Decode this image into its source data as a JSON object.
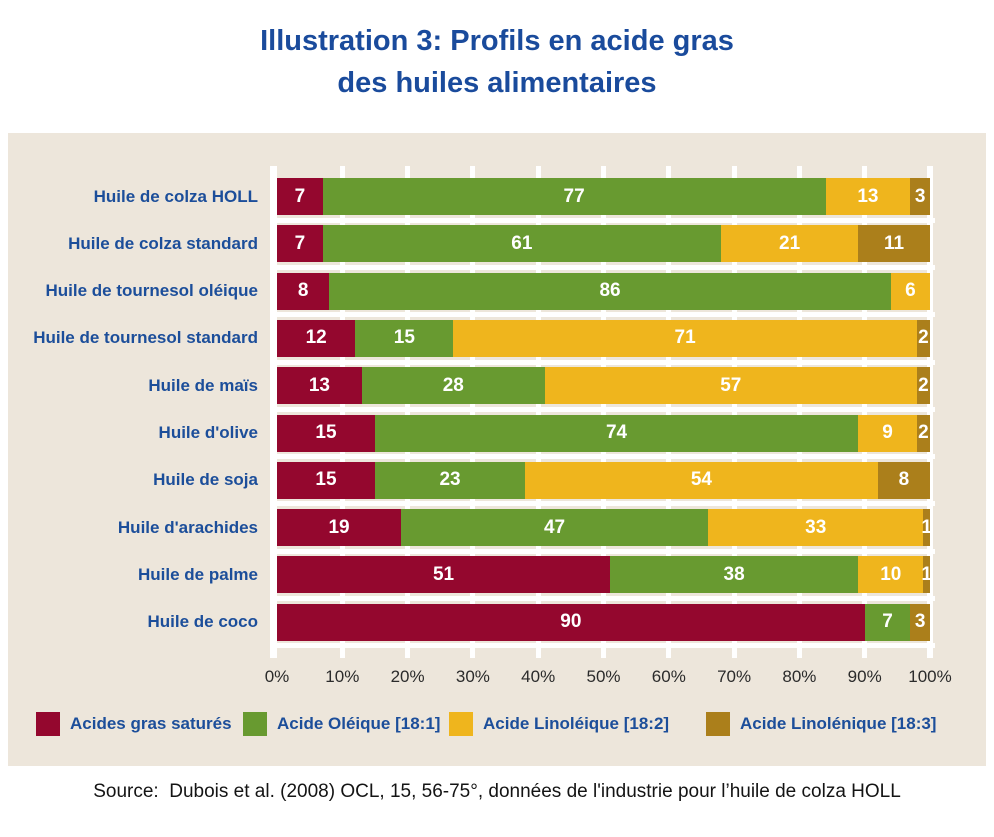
{
  "title": {
    "line1": "Illustration 3: Profils en acide gras",
    "line2": "des huiles alimentaires"
  },
  "chart_data": {
    "type": "bar",
    "orientation": "horizontal",
    "stacked": true,
    "unit": "%",
    "x_axis": {
      "min": 0,
      "max": 100,
      "tick_step": 10,
      "tick_labels": [
        "0%",
        "10%",
        "20%",
        "30%",
        "40%",
        "50%",
        "60%",
        "70%",
        "80%",
        "90%",
        "100%"
      ]
    },
    "categories": [
      "Huile de colza HOLL",
      "Huile de colza standard",
      "Huile de tournesol oléique",
      "Huile de tournesol standard",
      "Huile de maïs",
      "Huile d'olive",
      "Huile de soja",
      "Huile d'arachides",
      "Huile de palme",
      "Huile de coco"
    ],
    "series": [
      {
        "name": "Acides gras saturés",
        "color": "#94072E",
        "values": [
          7,
          7,
          8,
          12,
          13,
          15,
          15,
          19,
          51,
          90
        ]
      },
      {
        "name": "Acide Oléique [18:1]",
        "color": "#689A30",
        "values": [
          77,
          61,
          86,
          15,
          28,
          74,
          23,
          47,
          38,
          7
        ]
      },
      {
        "name": "Acide Linoléique [18:2]",
        "color": "#EFB51D",
        "values": [
          13,
          21,
          6,
          71,
          57,
          9,
          54,
          33,
          10,
          0
        ]
      },
      {
        "name": "Acide Linolénique [18:3]",
        "color": "#AB7F1B",
        "values": [
          3,
          11,
          0,
          2,
          2,
          2,
          8,
          1,
          1,
          3
        ]
      }
    ],
    "legend_position": "bottom",
    "grid": true
  },
  "colors": {
    "panel_background": "#EDE6DB",
    "title_blue": "#1A4B9C",
    "label_blue": "#1C4E9A",
    "gridline": "#FFFFFF"
  },
  "source": {
    "label": "Source:",
    "text": "Dubois et al. (2008) OCL, 15, 56-75°, données de l'industrie pour l’huile de colza HOLL"
  }
}
